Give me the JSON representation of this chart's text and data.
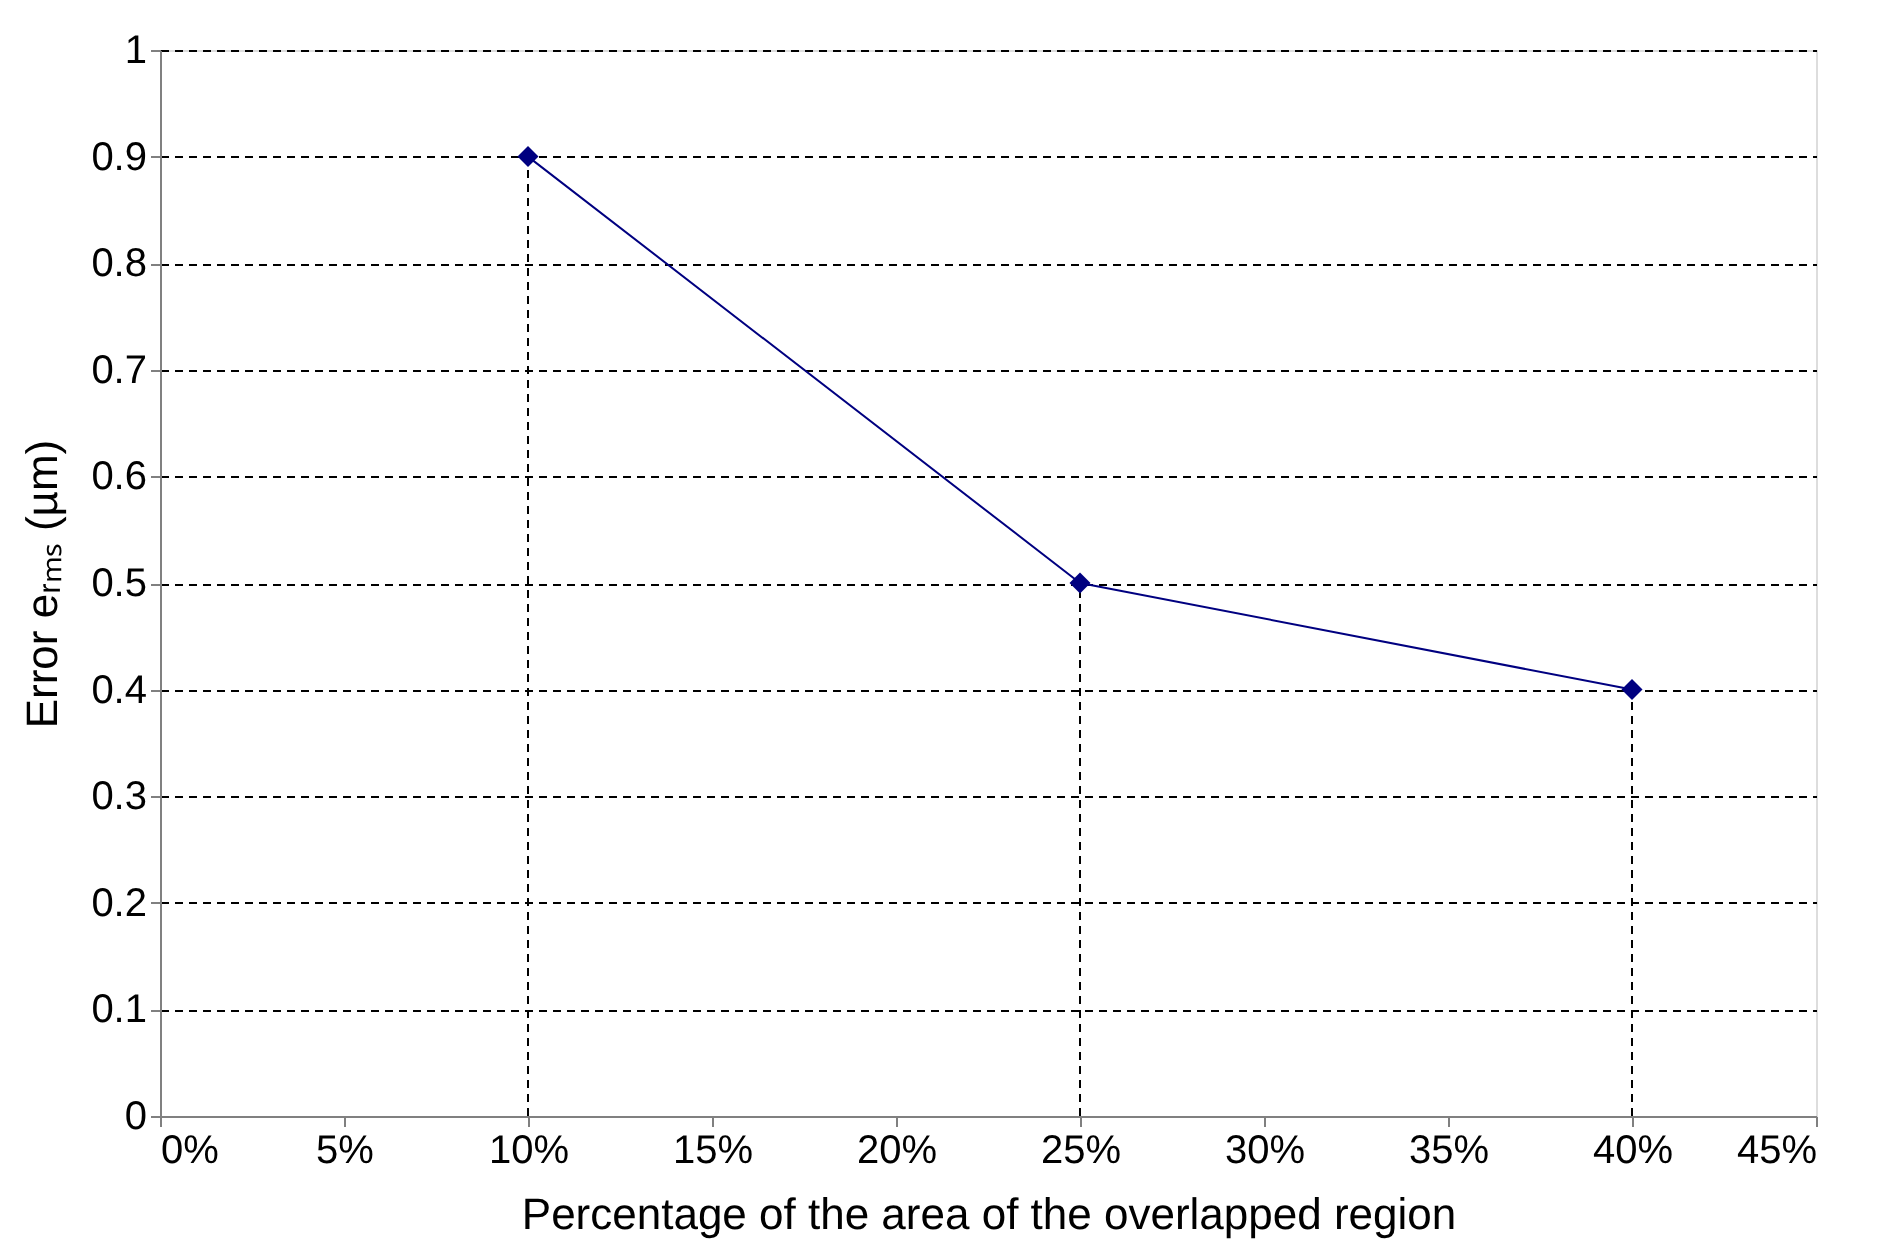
{
  "chart_data": {
    "type": "line",
    "xlabel": "Percentage of the area of the overlapped region",
    "ylabel": "Error eᵣₘₛ (µm)",
    "x": [
      10,
      25,
      40
    ],
    "series": [
      {
        "color": "#000080",
        "values": [
          0.9,
          0.5,
          0.4
        ]
      }
    ],
    "xlim": [
      0,
      45
    ],
    "xticks": [
      {
        "value": 0,
        "label": "0%"
      },
      {
        "value": 5,
        "label": "5%"
      },
      {
        "value": 10,
        "label": "10%"
      },
      {
        "value": 15,
        "label": "15%"
      },
      {
        "value": 20,
        "label": "20%"
      },
      {
        "value": 25,
        "label": "25%"
      },
      {
        "value": 30,
        "label": "30%"
      },
      {
        "value": 35,
        "label": "35%"
      },
      {
        "value": 40,
        "label": "40%"
      },
      {
        "value": 45,
        "label": "45%"
      }
    ],
    "ylim": [
      0,
      1
    ],
    "yticks": [
      0,
      0.1,
      0.2,
      0.3,
      0.4,
      0.5,
      0.6,
      0.7,
      0.8,
      0.9,
      1
    ],
    "ref_lines": [
      {
        "axis": "x",
        "value": 10,
        "line_style": "dashed",
        "color": "#000000"
      },
      {
        "axis": "x",
        "value": 25,
        "line_style": "dashed",
        "color": "#000000"
      },
      {
        "axis": "x",
        "value": 40,
        "line_style": "dashed",
        "color": "#000000"
      }
    ],
    "grid": "y",
    "marker": "diamond",
    "line_style": "solid"
  }
}
